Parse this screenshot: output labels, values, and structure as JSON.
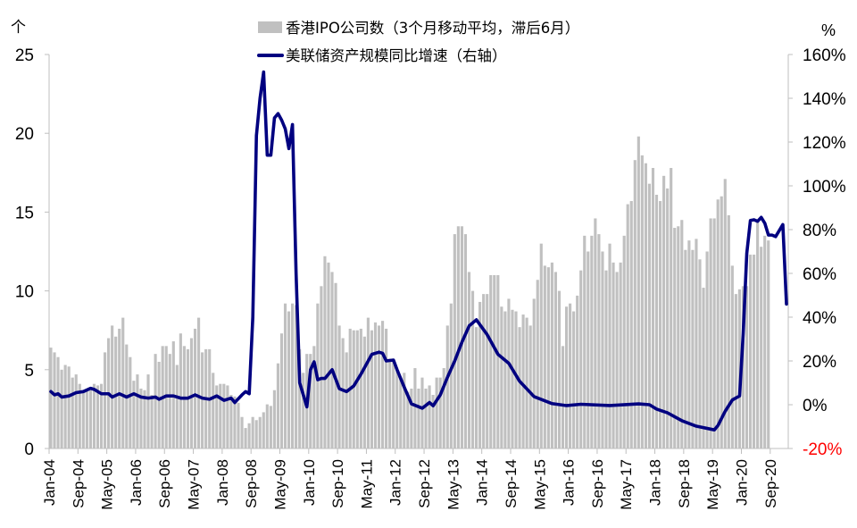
{
  "chart_data": {
    "type": "bar+line",
    "left_axis_unit": "个",
    "right_axis_unit": "%",
    "ylim_left": [
      0,
      25
    ],
    "yticks_left": [
      "0",
      "5",
      "10",
      "15",
      "20",
      "25"
    ],
    "ylim_right": [
      -20,
      160
    ],
    "yticks_right": [
      "-20%",
      "0%",
      "20%",
      "40%",
      "60%",
      "80%",
      "100%",
      "120%",
      "140%",
      "160%"
    ],
    "negative_tick_color": "#ff0000",
    "x_start": "2004-01",
    "x_months": 205,
    "xticks": [
      "Jan-04",
      "Sep-04",
      "May-05",
      "Jan-06",
      "Sep-06",
      "May-07",
      "Jan-08",
      "Sep-08",
      "May-09",
      "Jan-10",
      "Sep-10",
      "May-11",
      "Jan-12",
      "Sep-12",
      "May-13",
      "Jan-14",
      "Sep-14",
      "May-15",
      "Jan-16",
      "Sep-16",
      "May-17",
      "Jan-18",
      "Sep-18",
      "May-19",
      "Jan-20",
      "Sep-20"
    ],
    "grid": false,
    "legend_position": "top-center",
    "series": [
      {
        "name": "香港IPO公司数（3个月移动平均，滞后6月）",
        "type": "bar",
        "axis": "left",
        "color": "#c0c0c0",
        "values": [
          6.4,
          6.1,
          5.8,
          5.0,
          5.3,
          5.2,
          4.5,
          4.7,
          4.1,
          3.7,
          3.7,
          3.7,
          4.1,
          4.0,
          4.1,
          6.1,
          7.0,
          7.8,
          7.1,
          7.6,
          8.3,
          6.6,
          5.8,
          4.3,
          4.7,
          3.8,
          3.7,
          4.7,
          3.4,
          6.0,
          5.5,
          6.5,
          6.5,
          6.0,
          6.8,
          5.3,
          7.3,
          6.5,
          6.3,
          7.0,
          7.6,
          8.3,
          6.1,
          6.3,
          6.3,
          4.8,
          4.0,
          4.1,
          4.1,
          4.0,
          3.4,
          3.3,
          2.9,
          2.0,
          1.3,
          1.6,
          2.0,
          1.8,
          2.0,
          2.3,
          2.8,
          2.7,
          3.7,
          5.4,
          7.3,
          9.2,
          8.7,
          9.2,
          9.1,
          6.3,
          4.8,
          6.0,
          6.0,
          6.5,
          9.2,
          10.3,
          12.2,
          11.8,
          11.2,
          10.5,
          7.8,
          7.0,
          6.1,
          7.6,
          7.5,
          7.5,
          7.6,
          7.1,
          8.3,
          7.5,
          8.0,
          7.8,
          8.1,
          7.6,
          5.7,
          5.6,
          5.0,
          4.5,
          4.8,
          3.6,
          3.8,
          5.1,
          3.8,
          4.5,
          3.8,
          4.0,
          3.4,
          4.5,
          4.5,
          5.1,
          7.8,
          9.2,
          13.6,
          14.1,
          14.1,
          13.6,
          11.2,
          10.0,
          7.7,
          9.3,
          9.8,
          9.8,
          11.0,
          11.0,
          11.0,
          9.0,
          8.7,
          9.5,
          8.8,
          8.7,
          7.7,
          8.5,
          8.3,
          7.8,
          9.5,
          10.7,
          13.0,
          11.6,
          11.5,
          11.8,
          11.2,
          10.0,
          6.5,
          9.0,
          9.2,
          8.7,
          9.7,
          11.3,
          13.5,
          12.5,
          13.5,
          14.6,
          13.6,
          12.5,
          11.3,
          13.0,
          11.8,
          11.2,
          11.8,
          13.5,
          15.5,
          15.7,
          18.3,
          19.8,
          18.6,
          18.1,
          16.8,
          17.8,
          16.1,
          15.7,
          17.3,
          16.5,
          17.8,
          14.0,
          14.1,
          14.5,
          12.6,
          13.2,
          12.6,
          13.3,
          12.0,
          10.2,
          12.5,
          14.6,
          14.6,
          15.8,
          16.0,
          17.1,
          14.8,
          11.6,
          9.8,
          10.1,
          10.3,
          10.3,
          12.3,
          12.3,
          14.4,
          12.8,
          13.5,
          13.2
        ]
      },
      {
        "name": "美联储资产规模同比增速（右轴）",
        "type": "line",
        "axis": "right",
        "color": "#000080",
        "points": [
          [
            "2004-01",
            6
          ],
          [
            "2004-02",
            4.5
          ],
          [
            "2004-03",
            5
          ],
          [
            "2004-04",
            3.5
          ],
          [
            "2004-06",
            4
          ],
          [
            "2004-08",
            5.5
          ],
          [
            "2004-10",
            6
          ],
          [
            "2004-12",
            7.5
          ],
          [
            "2005-01",
            7
          ],
          [
            "2005-03",
            5
          ],
          [
            "2005-05",
            5
          ],
          [
            "2005-06",
            3.5
          ],
          [
            "2005-08",
            5
          ],
          [
            "2005-10",
            3.5
          ],
          [
            "2005-12",
            5
          ],
          [
            "2006-02",
            3.5
          ],
          [
            "2006-04",
            3
          ],
          [
            "2006-06",
            3.5
          ],
          [
            "2006-07",
            2.5
          ],
          [
            "2006-09",
            4
          ],
          [
            "2006-11",
            4
          ],
          [
            "2007-01",
            3
          ],
          [
            "2007-03",
            3
          ],
          [
            "2007-05",
            4.5
          ],
          [
            "2007-07",
            3
          ],
          [
            "2007-09",
            2.5
          ],
          [
            "2007-11",
            4
          ],
          [
            "2008-01",
            2
          ],
          [
            "2008-03",
            3
          ],
          [
            "2008-04",
            1
          ],
          [
            "2008-06",
            4.5
          ],
          [
            "2008-07",
            6
          ],
          [
            "2008-08",
            5
          ],
          [
            "2008-09",
            40
          ],
          [
            "2008-10",
            123
          ],
          [
            "2008-11",
            140
          ],
          [
            "2008-12",
            152
          ],
          [
            "2009-01",
            114
          ],
          [
            "2009-02",
            114
          ],
          [
            "2009-03",
            131
          ],
          [
            "2009-04",
            133
          ],
          [
            "2009-05",
            130
          ],
          [
            "2009-06",
            126
          ],
          [
            "2009-07",
            117
          ],
          [
            "2009-08",
            128
          ],
          [
            "2009-09",
            60
          ],
          [
            "2009-10",
            10
          ],
          [
            "2009-12",
            -1
          ],
          [
            "2010-01",
            16
          ],
          [
            "2010-02",
            19.6
          ],
          [
            "2010-03",
            11.4
          ],
          [
            "2010-04",
            12
          ],
          [
            "2010-05",
            12
          ],
          [
            "2010-07",
            16
          ],
          [
            "2010-09",
            7.3
          ],
          [
            "2010-11",
            6
          ],
          [
            "2011-01",
            8.6
          ],
          [
            "2011-03",
            14
          ],
          [
            "2011-06",
            23
          ],
          [
            "2011-08",
            24
          ],
          [
            "2011-09",
            23.5
          ],
          [
            "2011-10",
            20
          ],
          [
            "2011-12",
            20.4
          ],
          [
            "2012-01",
            16
          ],
          [
            "2012-03",
            8
          ],
          [
            "2012-05",
            0.4
          ],
          [
            "2012-08",
            -1.6
          ],
          [
            "2012-10",
            1
          ],
          [
            "2012-11",
            -0.5
          ],
          [
            "2013-01",
            4.5
          ],
          [
            "2013-03",
            12.6
          ],
          [
            "2013-05",
            20
          ],
          [
            "2013-07",
            28.6
          ],
          [
            "2013-09",
            36
          ],
          [
            "2013-11",
            38.8
          ],
          [
            "2014-02",
            32
          ],
          [
            "2014-05",
            23
          ],
          [
            "2014-08",
            18.9
          ],
          [
            "2014-11",
            10.7
          ],
          [
            "2015-03",
            3.7
          ],
          [
            "2015-08",
            0.5
          ],
          [
            "2015-12",
            -0.4
          ],
          [
            "2016-04",
            0.2
          ],
          [
            "2016-12",
            -0.4
          ],
          [
            "2017-08",
            0.4
          ],
          [
            "2017-11",
            0
          ],
          [
            "2018-01",
            -2
          ],
          [
            "2018-04",
            -3.7
          ],
          [
            "2018-08",
            -7.3
          ],
          [
            "2018-12",
            -9.8
          ],
          [
            "2019-05",
            -11.5
          ],
          [
            "2019-06",
            -9.5
          ],
          [
            "2019-08",
            -3
          ],
          [
            "2019-10",
            2.2
          ],
          [
            "2019-12",
            4
          ],
          [
            "2020-01",
            32.5
          ],
          [
            "2020-02",
            69.2
          ],
          [
            "2020-03",
            84.2
          ],
          [
            "2020-04",
            84.5
          ],
          [
            "2020-05",
            83.8
          ],
          [
            "2020-06",
            85.6
          ],
          [
            "2020-07",
            82.9
          ],
          [
            "2020-08",
            77.5
          ],
          [
            "2020-09",
            77.5
          ],
          [
            "2020-10",
            76.8
          ],
          [
            "2020-12",
            82.3
          ],
          [
            "2021-01",
            46
          ]
        ]
      }
    ]
  }
}
